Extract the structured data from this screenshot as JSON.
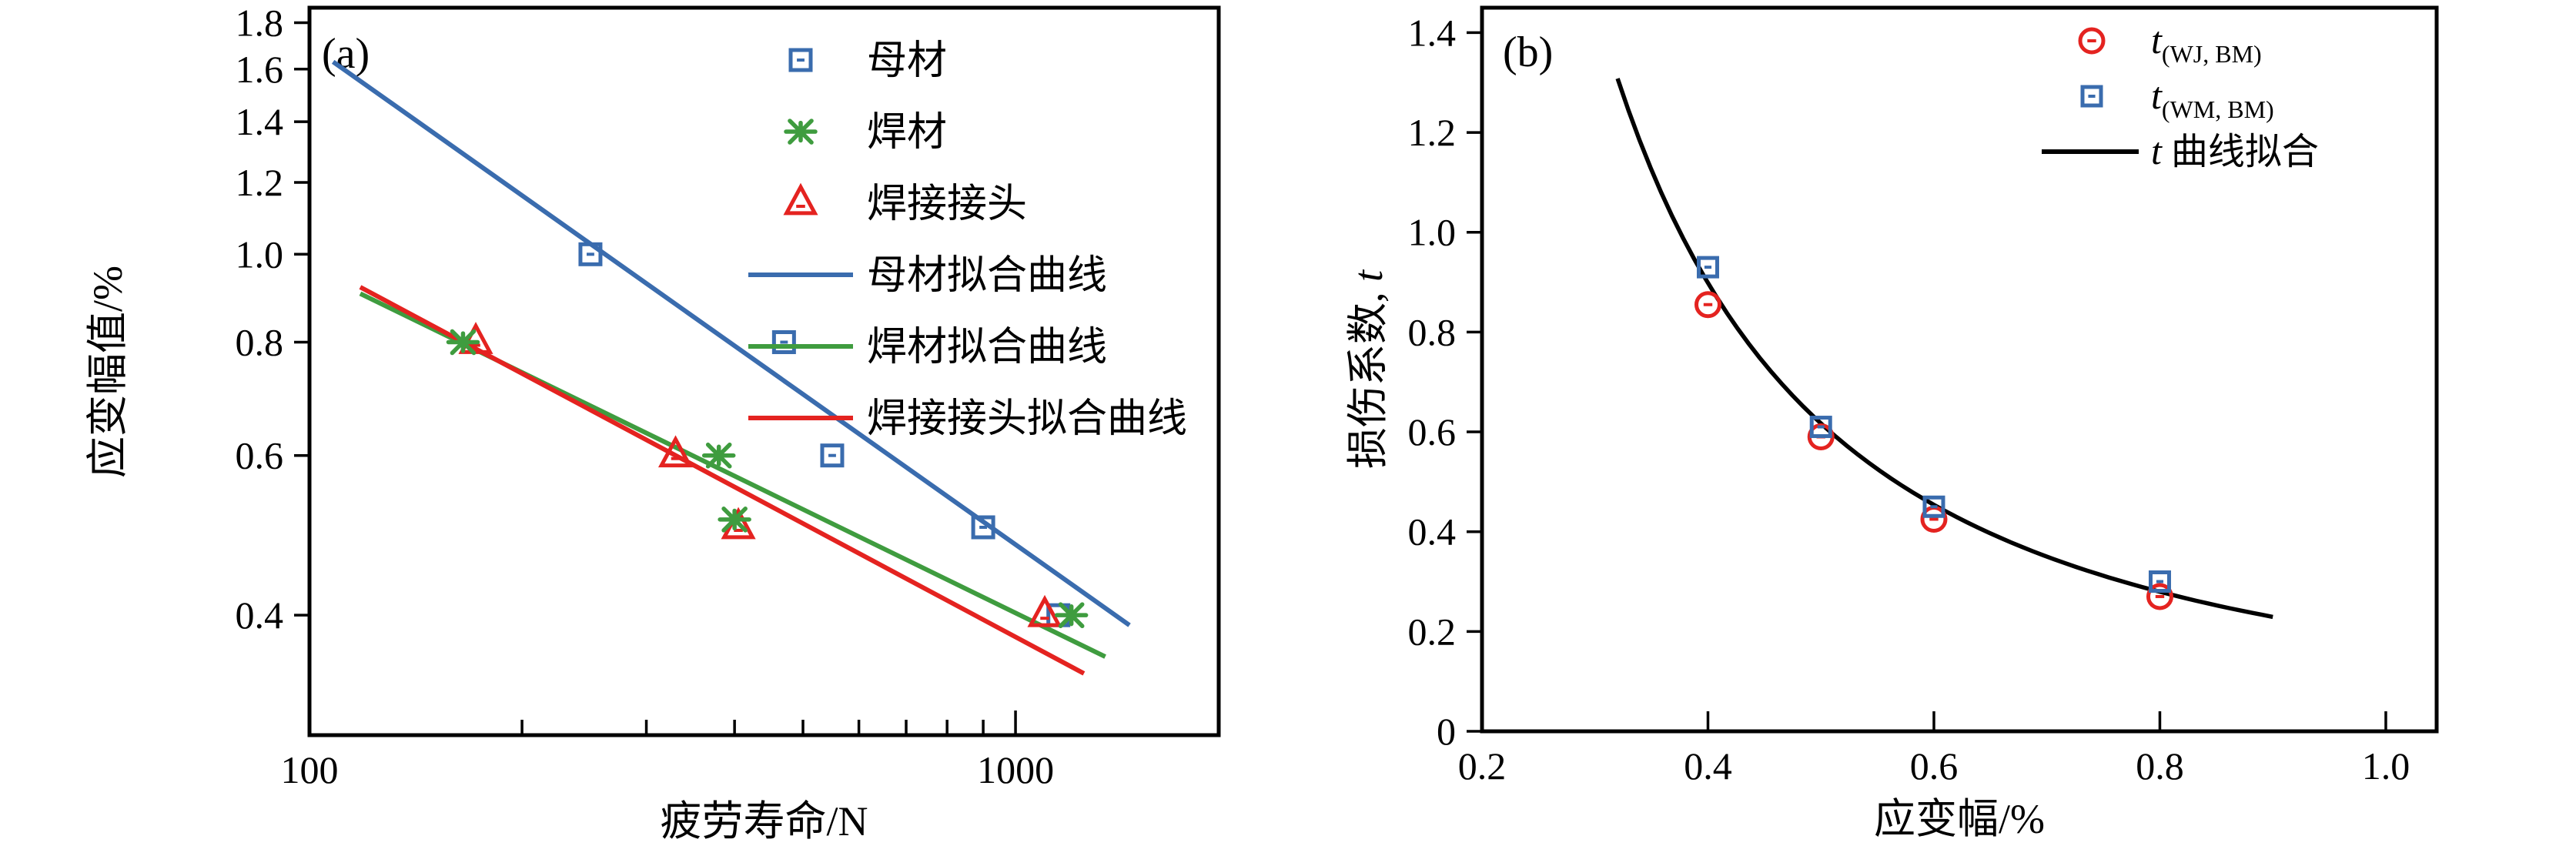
{
  "figure": {
    "background": "#ffffff"
  },
  "palette": {
    "blue": "#3a6cae",
    "green": "#3f9c3f",
    "red": "#e42320",
    "black": "#000000"
  },
  "chart_data": [
    {
      "id": "a",
      "type": "scatter",
      "panel_label": "(a)",
      "xlabel": "疲劳寿命/N",
      "ylabel": "应变幅值/%",
      "x_scale": "log",
      "y_scale": "log",
      "x_range": [
        100,
        1940
      ],
      "y_range": [
        0.295,
        1.87
      ],
      "grid": false,
      "legend_position": "inside-top-right",
      "x_ticks": [
        {
          "v": 100,
          "label": "100",
          "major": true
        },
        {
          "v": 200
        },
        {
          "v": 300
        },
        {
          "v": 400
        },
        {
          "v": 500
        },
        {
          "v": 600
        },
        {
          "v": 700
        },
        {
          "v": 800
        },
        {
          "v": 900
        },
        {
          "v": 1000,
          "label": "1000",
          "major": true
        }
      ],
      "y_ticks": [
        {
          "v": 1.8,
          "label": "1.8"
        },
        {
          "v": 1.6,
          "label": "1.6"
        },
        {
          "v": 1.4,
          "label": "1.4"
        },
        {
          "v": 1.2,
          "label": "1.2"
        },
        {
          "v": 1.0,
          "label": "1.0"
        },
        {
          "v": 0.8,
          "label": "0.8"
        },
        {
          "v": 0.6,
          "label": "0.6"
        },
        {
          "v": 0.4,
          "label": "0.4"
        }
      ],
      "series": [
        {
          "name": "母材",
          "marker": "square-dot",
          "color": "#3a6cae",
          "marker_size": 26,
          "z": 0,
          "points": [
            [
              250,
              1.0
            ],
            [
              470,
              0.8
            ],
            [
              550,
              0.6
            ],
            [
              900,
              0.5
            ],
            [
              1150,
              0.4
            ]
          ]
        },
        {
          "name": "焊材",
          "marker": "star",
          "color": "#3f9c3f",
          "marker_size": 38,
          "z": 2,
          "points": [
            [
              165,
              0.8
            ],
            [
              380,
              0.6
            ],
            [
              400,
              0.51
            ],
            [
              1200,
              0.4
            ]
          ]
        },
        {
          "name": "焊接接头",
          "marker": "triangle-dot",
          "color": "#e42320",
          "marker_size": 34,
          "z": 1,
          "points": [
            [
              172,
              0.8
            ],
            [
              330,
              0.6
            ],
            [
              405,
              0.5
            ],
            [
              1100,
              0.4
            ]
          ]
        }
      ],
      "fit_lines": [
        {
          "name": "母材拟合曲线",
          "color": "#3a6cae",
          "from": [
            108,
            1.63
          ],
          "to": [
            1450,
            0.39
          ]
        },
        {
          "name": "焊材拟合曲线",
          "color": "#3f9c3f",
          "from": [
            118,
            0.905
          ],
          "to": [
            1340,
            0.36
          ]
        },
        {
          "name": "焊接接头拟合曲线",
          "color": "#e42320",
          "from": [
            118,
            0.92
          ],
          "to": [
            1250,
            0.345
          ]
        }
      ],
      "legend": [
        {
          "kind": "marker",
          "marker": "square-dot",
          "color": "#3a6cae",
          "marker_size": 26,
          "label": "母材"
        },
        {
          "kind": "marker",
          "marker": "star",
          "color": "#3f9c3f",
          "marker_size": 38,
          "label": "焊材"
        },
        {
          "kind": "marker",
          "marker": "triangle-dot",
          "color": "#e42320",
          "marker_size": 34,
          "label": "焊接接头"
        },
        {
          "kind": "line",
          "color": "#3a6cae",
          "label": "母材拟合曲线"
        },
        {
          "kind": "line",
          "color": "#3f9c3f",
          "label": "焊材拟合曲线"
        },
        {
          "kind": "line",
          "color": "#e42320",
          "label": "焊接接头拟合曲线"
        }
      ]
    },
    {
      "id": "b",
      "type": "scatter",
      "panel_label": "(b)",
      "xlabel": "应变幅/%",
      "ylabel": "损伤系数, t",
      "ylabel_parts": {
        "pre": "损伤系数, ",
        "italic": "t"
      },
      "x_scale": "linear",
      "y_scale": "linear",
      "x_range": [
        0.2,
        1.045
      ],
      "y_range": [
        0,
        1.45
      ],
      "grid": false,
      "legend_position": "inside-top-right",
      "x_ticks": [
        {
          "v": 0.2,
          "label": "0.2"
        },
        {
          "v": 0.4,
          "label": "0.4"
        },
        {
          "v": 0.6,
          "label": "0.6"
        },
        {
          "v": 0.8,
          "label": "0.8"
        },
        {
          "v": 1.0,
          "label": "1.0"
        }
      ],
      "y_ticks": [
        {
          "v": 0,
          "label": "0"
        },
        {
          "v": 0.2,
          "label": "0.2"
        },
        {
          "v": 0.4,
          "label": "0.4"
        },
        {
          "v": 0.6,
          "label": "0.6"
        },
        {
          "v": 0.8,
          "label": "0.8"
        },
        {
          "v": 1.0,
          "label": "1.0"
        },
        {
          "v": 1.2,
          "label": "1.2"
        },
        {
          "v": 1.4,
          "label": "1.4"
        }
      ],
      "series": [
        {
          "name": "t(WJ, BM)",
          "marker": "circle-dot",
          "color": "#e42320",
          "marker_size": 30,
          "z": 1,
          "points": [
            [
              0.4,
              0.855
            ],
            [
              0.5,
              0.59
            ],
            [
              0.6,
              0.425
            ],
            [
              0.8,
              0.27
            ]
          ]
        },
        {
          "name": "t(WM, BM)",
          "marker": "square-dot",
          "color": "#3a6cae",
          "marker_size": 24,
          "z": 2,
          "points": [
            [
              0.4,
              0.93
            ],
            [
              0.5,
              0.61
            ],
            [
              0.6,
              0.45
            ],
            [
              0.8,
              0.3
            ]
          ]
        }
      ],
      "fit_curve": {
        "name": "t 曲线拟合",
        "color": "#000000",
        "power_a": 0.192,
        "power_b": -1.684,
        "x_domain": [
          0.32,
          0.9
        ]
      },
      "legend": [
        {
          "kind": "marker",
          "marker": "circle-dot",
          "color": "#e42320",
          "marker_size": 30,
          "label_main": "t",
          "label_sub": "(WJ, BM)"
        },
        {
          "kind": "marker",
          "marker": "square-dot",
          "color": "#3a6cae",
          "marker_size": 24,
          "label_main": "t",
          "label_sub": "(WM, BM)"
        },
        {
          "kind": "line",
          "color": "#000000",
          "label_main": "t",
          "label_rest": " 曲线拟合"
        }
      ]
    }
  ]
}
